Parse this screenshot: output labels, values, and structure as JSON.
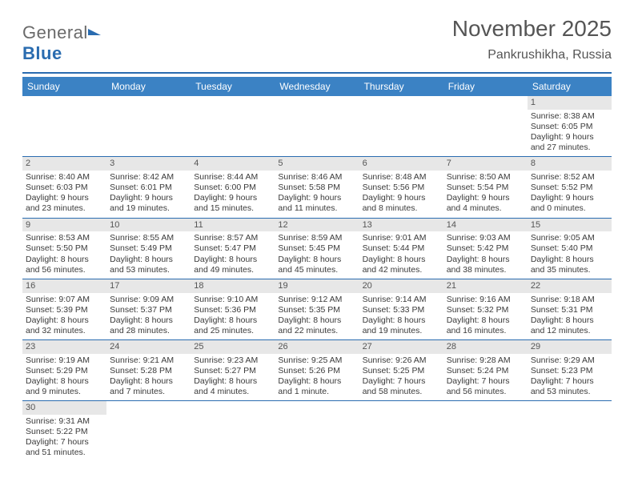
{
  "logo": {
    "text1": "General",
    "text2": "Blue"
  },
  "title": "November 2025",
  "subtitle": "Pankrushikha, Russia",
  "header_bg": "#3b82c4",
  "accent_line": "#2a6cb0",
  "daynum_bg": "#e7e7e7",
  "days_of_week": [
    "Sunday",
    "Monday",
    "Tuesday",
    "Wednesday",
    "Thursday",
    "Friday",
    "Saturday"
  ],
  "weeks": [
    [
      null,
      null,
      null,
      null,
      null,
      null,
      {
        "n": "1",
        "sr": "Sunrise: 8:38 AM",
        "ss": "Sunset: 6:05 PM",
        "dl": "Daylight: 9 hours and 27 minutes."
      }
    ],
    [
      {
        "n": "2",
        "sr": "Sunrise: 8:40 AM",
        "ss": "Sunset: 6:03 PM",
        "dl": "Daylight: 9 hours and 23 minutes."
      },
      {
        "n": "3",
        "sr": "Sunrise: 8:42 AM",
        "ss": "Sunset: 6:01 PM",
        "dl": "Daylight: 9 hours and 19 minutes."
      },
      {
        "n": "4",
        "sr": "Sunrise: 8:44 AM",
        "ss": "Sunset: 6:00 PM",
        "dl": "Daylight: 9 hours and 15 minutes."
      },
      {
        "n": "5",
        "sr": "Sunrise: 8:46 AM",
        "ss": "Sunset: 5:58 PM",
        "dl": "Daylight: 9 hours and 11 minutes."
      },
      {
        "n": "6",
        "sr": "Sunrise: 8:48 AM",
        "ss": "Sunset: 5:56 PM",
        "dl": "Daylight: 9 hours and 8 minutes."
      },
      {
        "n": "7",
        "sr": "Sunrise: 8:50 AM",
        "ss": "Sunset: 5:54 PM",
        "dl": "Daylight: 9 hours and 4 minutes."
      },
      {
        "n": "8",
        "sr": "Sunrise: 8:52 AM",
        "ss": "Sunset: 5:52 PM",
        "dl": "Daylight: 9 hours and 0 minutes."
      }
    ],
    [
      {
        "n": "9",
        "sr": "Sunrise: 8:53 AM",
        "ss": "Sunset: 5:50 PM",
        "dl": "Daylight: 8 hours and 56 minutes."
      },
      {
        "n": "10",
        "sr": "Sunrise: 8:55 AM",
        "ss": "Sunset: 5:49 PM",
        "dl": "Daylight: 8 hours and 53 minutes."
      },
      {
        "n": "11",
        "sr": "Sunrise: 8:57 AM",
        "ss": "Sunset: 5:47 PM",
        "dl": "Daylight: 8 hours and 49 minutes."
      },
      {
        "n": "12",
        "sr": "Sunrise: 8:59 AM",
        "ss": "Sunset: 5:45 PM",
        "dl": "Daylight: 8 hours and 45 minutes."
      },
      {
        "n": "13",
        "sr": "Sunrise: 9:01 AM",
        "ss": "Sunset: 5:44 PM",
        "dl": "Daylight: 8 hours and 42 minutes."
      },
      {
        "n": "14",
        "sr": "Sunrise: 9:03 AM",
        "ss": "Sunset: 5:42 PM",
        "dl": "Daylight: 8 hours and 38 minutes."
      },
      {
        "n": "15",
        "sr": "Sunrise: 9:05 AM",
        "ss": "Sunset: 5:40 PM",
        "dl": "Daylight: 8 hours and 35 minutes."
      }
    ],
    [
      {
        "n": "16",
        "sr": "Sunrise: 9:07 AM",
        "ss": "Sunset: 5:39 PM",
        "dl": "Daylight: 8 hours and 32 minutes."
      },
      {
        "n": "17",
        "sr": "Sunrise: 9:09 AM",
        "ss": "Sunset: 5:37 PM",
        "dl": "Daylight: 8 hours and 28 minutes."
      },
      {
        "n": "18",
        "sr": "Sunrise: 9:10 AM",
        "ss": "Sunset: 5:36 PM",
        "dl": "Daylight: 8 hours and 25 minutes."
      },
      {
        "n": "19",
        "sr": "Sunrise: 9:12 AM",
        "ss": "Sunset: 5:35 PM",
        "dl": "Daylight: 8 hours and 22 minutes."
      },
      {
        "n": "20",
        "sr": "Sunrise: 9:14 AM",
        "ss": "Sunset: 5:33 PM",
        "dl": "Daylight: 8 hours and 19 minutes."
      },
      {
        "n": "21",
        "sr": "Sunrise: 9:16 AM",
        "ss": "Sunset: 5:32 PM",
        "dl": "Daylight: 8 hours and 16 minutes."
      },
      {
        "n": "22",
        "sr": "Sunrise: 9:18 AM",
        "ss": "Sunset: 5:31 PM",
        "dl": "Daylight: 8 hours and 12 minutes."
      }
    ],
    [
      {
        "n": "23",
        "sr": "Sunrise: 9:19 AM",
        "ss": "Sunset: 5:29 PM",
        "dl": "Daylight: 8 hours and 9 minutes."
      },
      {
        "n": "24",
        "sr": "Sunrise: 9:21 AM",
        "ss": "Sunset: 5:28 PM",
        "dl": "Daylight: 8 hours and 7 minutes."
      },
      {
        "n": "25",
        "sr": "Sunrise: 9:23 AM",
        "ss": "Sunset: 5:27 PM",
        "dl": "Daylight: 8 hours and 4 minutes."
      },
      {
        "n": "26",
        "sr": "Sunrise: 9:25 AM",
        "ss": "Sunset: 5:26 PM",
        "dl": "Daylight: 8 hours and 1 minute."
      },
      {
        "n": "27",
        "sr": "Sunrise: 9:26 AM",
        "ss": "Sunset: 5:25 PM",
        "dl": "Daylight: 7 hours and 58 minutes."
      },
      {
        "n": "28",
        "sr": "Sunrise: 9:28 AM",
        "ss": "Sunset: 5:24 PM",
        "dl": "Daylight: 7 hours and 56 minutes."
      },
      {
        "n": "29",
        "sr": "Sunrise: 9:29 AM",
        "ss": "Sunset: 5:23 PM",
        "dl": "Daylight: 7 hours and 53 minutes."
      }
    ],
    [
      {
        "n": "30",
        "sr": "Sunrise: 9:31 AM",
        "ss": "Sunset: 5:22 PM",
        "dl": "Daylight: 7 hours and 51 minutes."
      },
      null,
      null,
      null,
      null,
      null,
      null
    ]
  ]
}
